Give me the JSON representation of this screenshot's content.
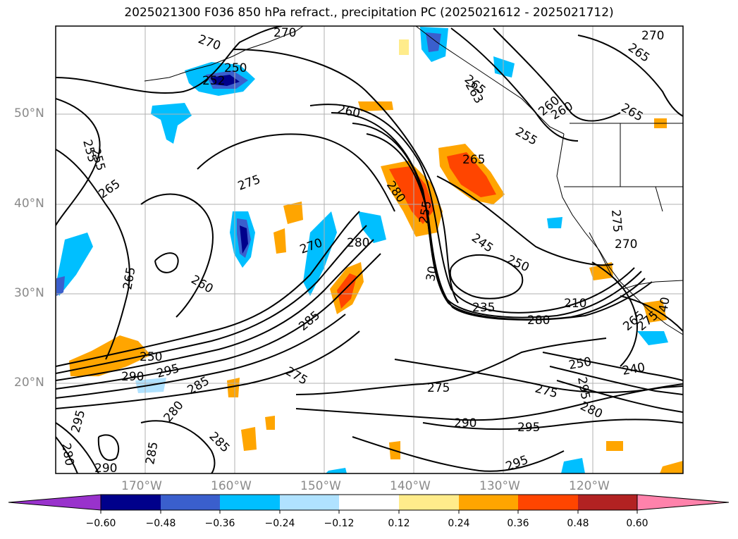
{
  "title": "2025021300 F036 850 hPa refract., precipitation PC (2025021612 - 2025021712)",
  "lat_labels": [
    "50°N",
    "40°N",
    "30°N",
    "20°N"
  ],
  "lon_labels": [
    "170°W",
    "160°W",
    "150°W",
    "140°W",
    "130°W",
    "120°W"
  ],
  "contour_labels": [
    "255",
    "265",
    "270",
    "252",
    "250",
    "260",
    "255",
    "260",
    "265",
    "275",
    "280",
    "270",
    "280",
    "265",
    "255",
    "245",
    "250",
    "275",
    "270",
    "265",
    "30",
    "275",
    "265",
    "260",
    "235",
    "280",
    "210",
    "285",
    "250",
    "295",
    "290",
    "295",
    "275",
    "285",
    "280",
    "265",
    "275",
    "250",
    "240",
    "275",
    "280",
    "290",
    "295",
    "295",
    "280",
    "285",
    "290",
    "285",
    "40",
    "295",
    "270",
    "265",
    "255",
    "260",
    "263",
    "270"
  ],
  "colorbar": {
    "tick_labels": [
      "−0.60",
      "−0.48",
      "−0.36",
      "−0.24",
      "−0.12",
      "0.12",
      "0.24",
      "0.36",
      "0.48",
      "0.60"
    ],
    "colors": [
      "#9932cc",
      "#00008b",
      "#3a5fcd",
      "#00bfff",
      "#b0e2ff",
      "#ffffff",
      "#ffec8b",
      "#ffa500",
      "#ff4500",
      "#b22222",
      "#ff82ab"
    ]
  }
}
